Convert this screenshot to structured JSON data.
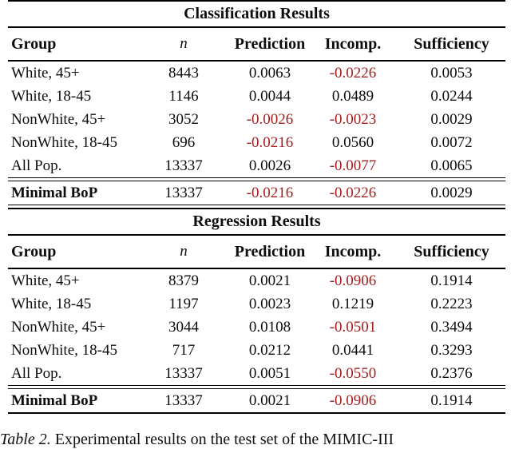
{
  "colors": {
    "negative_value": "#a41e1e",
    "text": "#0d0d0d",
    "rule": "#000000"
  },
  "tables": [
    {
      "title": "Classification Results",
      "columns": [
        "Group",
        "n",
        "Prediction",
        "Incomp.",
        "Sufficiency"
      ],
      "rows": [
        {
          "group": "White, 45+",
          "n": "8443",
          "prediction": "0.0063",
          "incomp": "-0.0226",
          "sufficiency": "0.0053"
        },
        {
          "group": "White, 18-45",
          "n": "1146",
          "prediction": "0.0044",
          "incomp": "0.0489",
          "sufficiency": "0.0244"
        },
        {
          "group": "NonWhite, 45+",
          "n": "3052",
          "prediction": "-0.0026",
          "incomp": "-0.0023",
          "sufficiency": "0.0029"
        },
        {
          "group": "NonWhite, 18-45",
          "n": "696",
          "prediction": "-0.0216",
          "incomp": "0.0560",
          "sufficiency": "0.0072"
        },
        {
          "group": "All Pop.",
          "n": "13337",
          "prediction": "0.0026",
          "incomp": "-0.0077",
          "sufficiency": "0.0065"
        }
      ],
      "summary": {
        "group": "Minimal BoP",
        "n": "13337",
        "prediction": "-0.0216",
        "incomp": "-0.0226",
        "sufficiency": "0.0029"
      }
    },
    {
      "title": "Regression Results",
      "columns": [
        "Group",
        "n",
        "Prediction",
        "Incomp.",
        "Sufficiency"
      ],
      "rows": [
        {
          "group": "White, 45+",
          "n": "8379",
          "prediction": "0.0021",
          "incomp": "-0.0906",
          "sufficiency": "0.1914"
        },
        {
          "group": "White, 18-45",
          "n": "1197",
          "prediction": "0.0023",
          "incomp": "0.1219",
          "sufficiency": "0.2223"
        },
        {
          "group": "NonWhite, 45+",
          "n": "3044",
          "prediction": "0.0108",
          "incomp": "-0.0501",
          "sufficiency": "0.3494"
        },
        {
          "group": "NonWhite, 18-45",
          "n": "717",
          "prediction": "0.0212",
          "incomp": "0.0441",
          "sufficiency": "0.3293"
        },
        {
          "group": "All Pop.",
          "n": "13337",
          "prediction": "0.0051",
          "incomp": "-0.0550",
          "sufficiency": "0.2376"
        }
      ],
      "summary": {
        "group": "Minimal BoP",
        "n": "13337",
        "prediction": "0.0021",
        "incomp": "-0.0906",
        "sufficiency": "0.1914"
      }
    }
  ],
  "caption": {
    "label": "Table 2.",
    "text": "Experimental results on the test set of the MIMIC-III"
  }
}
